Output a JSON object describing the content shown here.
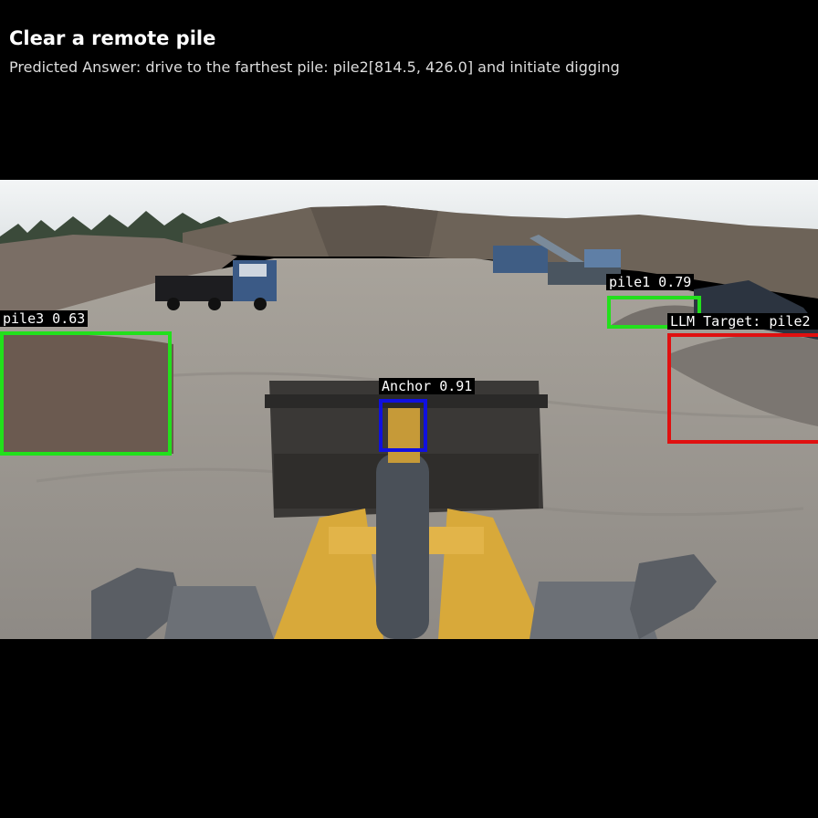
{
  "header": {
    "title": "Clear a remote pile",
    "answer": "Predicted Answer: drive to the farthest pile: pile2[814.5, 426.0] and initiate digging"
  },
  "detections": [
    {
      "label": "pile1 0.79"
    },
    {
      "label": "LLM Target: pile2 0"
    },
    {
      "label": "pile3 0.63"
    },
    {
      "label": "Anchor 0.91"
    }
  ],
  "colors": {
    "green": "#22e01c",
    "red": "#e01010",
    "blue": "#1010e0",
    "bucket_yellow": "#d8a93a",
    "sky": "#e8ecef",
    "ground": "#9c9893"
  }
}
